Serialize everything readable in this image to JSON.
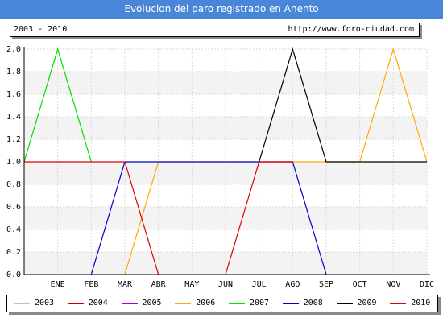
{
  "header": {
    "title": "Evolucion del paro registrado en Anento"
  },
  "info": {
    "period": "2003 - 2010",
    "url": "http://www.foro-ciudad.com"
  },
  "colors": {
    "title_bg": "#4a86d8",
    "grid": "#d9d9d9",
    "band": "#f3f3f3"
  },
  "chart_data": {
    "type": "line",
    "title": "Evolucion del paro registrado en Anento",
    "categories": [
      "",
      "ENE",
      "FEB",
      "MAR",
      "ABR",
      "MAY",
      "JUN",
      "JUL",
      "AGO",
      "SEP",
      "OCT",
      "NOV",
      "DIC"
    ],
    "ylim": [
      0,
      2
    ],
    "yticks": [
      "0.0",
      "0.2",
      "0.4",
      "0.6",
      "0.8",
      "1.0",
      "1.2",
      "1.4",
      "1.6",
      "1.8",
      "2.0"
    ],
    "grid": true,
    "legend_position": "bottom",
    "series": [
      {
        "name": "2003",
        "color": "#c0c0c0",
        "values": [
          null,
          null,
          null,
          null,
          null,
          null,
          null,
          null,
          null,
          null,
          null,
          null,
          null
        ]
      },
      {
        "name": "2004",
        "color": "#cc0000",
        "values": [
          null,
          null,
          null,
          null,
          null,
          null,
          null,
          null,
          null,
          null,
          null,
          null,
          null
        ]
      },
      {
        "name": "2005",
        "color": "#aa00cc",
        "values": [
          null,
          null,
          null,
          null,
          null,
          null,
          null,
          null,
          null,
          null,
          null,
          null,
          null
        ]
      },
      {
        "name": "2006",
        "color": "#ffaa00",
        "values": [
          null,
          null,
          null,
          0,
          1,
          1,
          1,
          1,
          1,
          1,
          1,
          2,
          1
        ]
      },
      {
        "name": "2007",
        "color": "#00dd00",
        "values": [
          1,
          2,
          1,
          null,
          null,
          null,
          null,
          null,
          null,
          null,
          null,
          null,
          null
        ]
      },
      {
        "name": "2008",
        "color": "#0000cc",
        "values": [
          null,
          null,
          0,
          1,
          1,
          1,
          1,
          1,
          1,
          0,
          null,
          null,
          null
        ]
      },
      {
        "name": "2009",
        "color": "#000000",
        "values": [
          null,
          null,
          null,
          null,
          null,
          null,
          null,
          1,
          2,
          1,
          1,
          1,
          1
        ]
      },
      {
        "name": "2010",
        "color": "#dd0000",
        "values": [
          1,
          1,
          1,
          1,
          0,
          null,
          0,
          1,
          1,
          null,
          null,
          null,
          null
        ]
      }
    ]
  }
}
